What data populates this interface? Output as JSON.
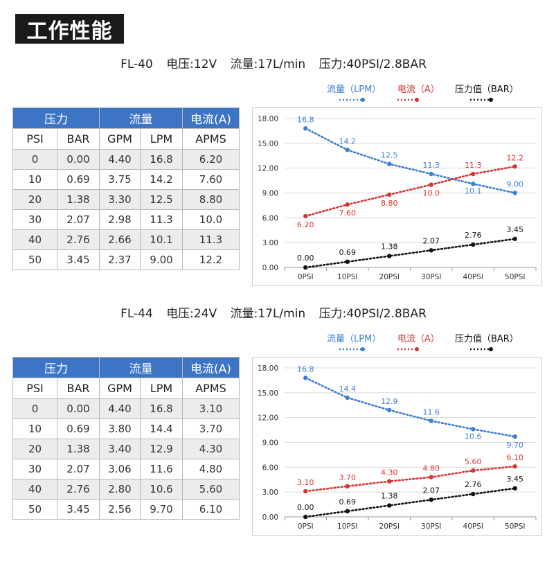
{
  "header": {
    "title": "工作性能"
  },
  "colors": {
    "lpm": "#3b7dd8",
    "amps": "#d93430",
    "bar": "#111111",
    "header_bg": "#3d75c4",
    "badge_bg": "#1a1a1a"
  },
  "legend": {
    "lpm": "流量（LPM）",
    "amps": "电流（A）",
    "bar": "压力值（BAR）"
  },
  "table_headers": {
    "group_pressure": "压力",
    "group_flow": "流量",
    "group_current": "电流(A)",
    "psi": "PSI",
    "bar": "BAR",
    "gpm": "GPM",
    "lpm": "LPM",
    "apms": "APMS"
  },
  "sections": [
    {
      "model": "FL-40",
      "voltage": "电压:12V",
      "flow": "流量:17L/min",
      "pressure": "压力:40PSI/2.8BAR",
      "rows": [
        [
          "0",
          "0.00",
          "4.40",
          "16.8",
          "6.20"
        ],
        [
          "10",
          "0.69",
          "3.75",
          "14.2",
          "7.60"
        ],
        [
          "20",
          "1.38",
          "3.30",
          "12.5",
          "8.80"
        ],
        [
          "30",
          "2.07",
          "2.98",
          "11.3",
          "10.0"
        ],
        [
          "40",
          "2.76",
          "2.66",
          "10.1",
          "11.3"
        ],
        [
          "50",
          "3.45",
          "2.37",
          "9.00",
          "12.2"
        ]
      ]
    },
    {
      "model": "FL-44",
      "voltage": "电压:24V",
      "flow": "流量:17L/min",
      "pressure": "压力:40PSI/2.8BAR",
      "rows": [
        [
          "0",
          "0.00",
          "4.40",
          "16.8",
          "3.10"
        ],
        [
          "10",
          "0.69",
          "3.80",
          "14.4",
          "3.70"
        ],
        [
          "20",
          "1.38",
          "3.40",
          "12.9",
          "4.30"
        ],
        [
          "30",
          "2.07",
          "3.06",
          "11.6",
          "4.80"
        ],
        [
          "40",
          "2.76",
          "2.80",
          "10.6",
          "5.60"
        ],
        [
          "50",
          "3.45",
          "2.56",
          "9.70",
          "6.10"
        ]
      ]
    }
  ],
  "chart_data": [
    {
      "type": "line",
      "categories": [
        "0PSI",
        "10PSI",
        "20PSI",
        "30PSI",
        "40PSI",
        "50PSI"
      ],
      "ylim": [
        0,
        18
      ],
      "yticks": [
        "0.00",
        "3.00",
        "6.00",
        "9.00",
        "12.00",
        "15.00",
        "18.00"
      ],
      "grid": "horizontal",
      "legend_position": "top",
      "series": [
        {
          "name": "流量（LPM）",
          "values": [
            16.8,
            14.2,
            12.5,
            11.3,
            10.1,
            9.0
          ],
          "labels": [
            "16.8",
            "14.2",
            "12.5",
            "11.3",
            "10.1",
            "9.00"
          ]
        },
        {
          "name": "电流（A）",
          "values": [
            6.2,
            7.6,
            8.8,
            10.0,
            11.3,
            12.2
          ],
          "labels": [
            "6.20",
            "7.60",
            "8.80",
            "10.0",
            "11.3",
            "12.2"
          ]
        },
        {
          "name": "压力值（BAR）",
          "values": [
            0.0,
            0.69,
            1.38,
            2.07,
            2.76,
            3.45
          ],
          "labels": [
            "0.00",
            "0.69",
            "1.38",
            "2.07",
            "2.76",
            "3.45"
          ]
        }
      ]
    },
    {
      "type": "line",
      "categories": [
        "0PSI",
        "10PSI",
        "20PSI",
        "30PSI",
        "40PSI",
        "50PSI"
      ],
      "ylim": [
        0,
        18
      ],
      "yticks": [
        "0.00",
        "3.00",
        "6.00",
        "9.00",
        "12.00",
        "15.00",
        "18.00"
      ],
      "grid": "horizontal",
      "legend_position": "top",
      "series": [
        {
          "name": "流量（LPM）",
          "values": [
            16.8,
            14.4,
            12.9,
            11.6,
            10.6,
            9.7
          ],
          "labels": [
            "16.8",
            "14.4",
            "12.9",
            "11.6",
            "10.6",
            "9.70"
          ]
        },
        {
          "name": "电流（A）",
          "values": [
            3.1,
            3.7,
            4.3,
            4.8,
            5.6,
            6.1
          ],
          "labels": [
            "3.10",
            "3.70",
            "4.30",
            "4.80",
            "5.60",
            "6.10"
          ]
        },
        {
          "name": "压力值（BAR）",
          "values": [
            0.0,
            0.69,
            1.38,
            2.07,
            2.76,
            3.45
          ],
          "labels": [
            "0.00",
            "0.69",
            "1.38",
            "2.07",
            "2.76",
            "3.45"
          ]
        }
      ]
    }
  ]
}
